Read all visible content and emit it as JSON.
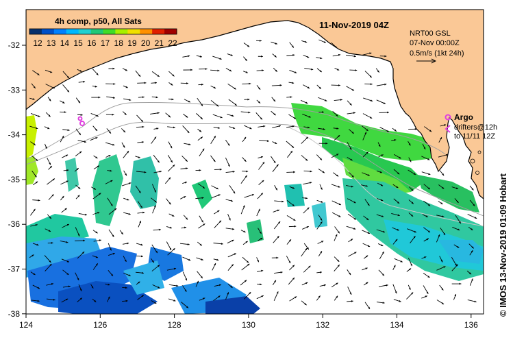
{
  "title": "4h comp, p50, All Sats",
  "date": "11-Nov-2019 04Z",
  "colorbar": {
    "labels": [
      "12",
      "13",
      "14",
      "15",
      "16",
      "17",
      "18",
      "19",
      "20",
      "21",
      "22"
    ],
    "colors": [
      "#08306b",
      "#0050c8",
      "#0080ff",
      "#00b8ff",
      "#20d0d0",
      "#20c878",
      "#40dc28",
      "#a8f000",
      "#f0e000",
      "#ff9000",
      "#e02000",
      "#a00000"
    ]
  },
  "info": {
    "product": "NRT00 GSL",
    "date": "07-Nov 00:00Z",
    "scale_label": "0.5m/s (1kt 24h)"
  },
  "legend": {
    "argo": "Argo",
    "drifters": "drifters@12h",
    "drifters_to": "to 11/11 12Z"
  },
  "side_credit": "© IMOS 13-Nov-2019 01:09 Hobart",
  "axes": {
    "x_ticks": [
      "124",
      "126",
      "128",
      "130",
      "132",
      "134",
      "136"
    ],
    "y_ticks": [
      "-32",
      "-33",
      "-34",
      "-35",
      "-36",
      "-37",
      "-38"
    ]
  },
  "colors": {
    "land": "#fac896",
    "ocean": "#ffffff",
    "bathymetry": "#a0a0a0",
    "arrow": "#000000",
    "argo_marker": "#e040e0"
  }
}
